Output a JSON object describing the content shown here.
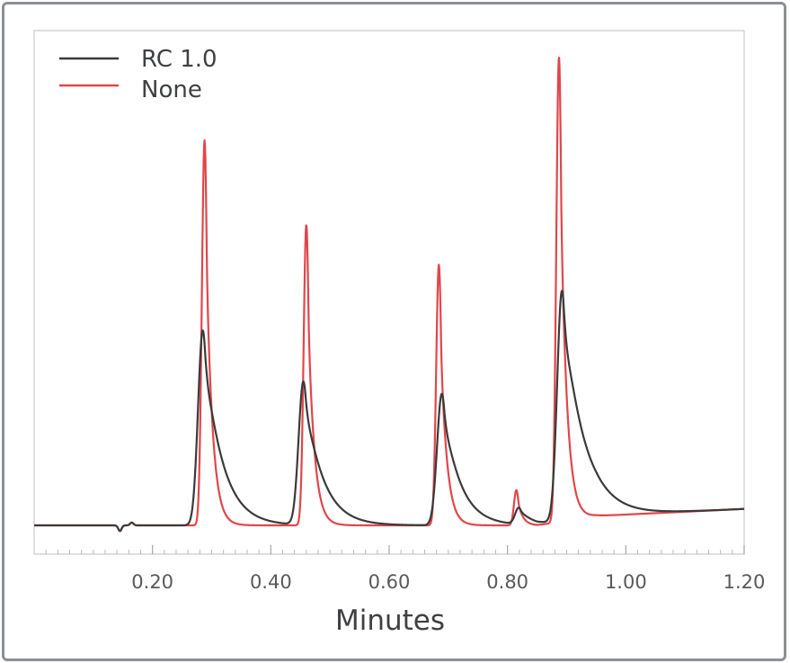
{
  "chart_data": {
    "type": "line",
    "title": "",
    "xlabel": "Minutes",
    "ylabel": "",
    "xlim": [
      0.0,
      1.2
    ],
    "ylim": [
      -0.06,
      1.02
    ],
    "x_ticks": [
      0.2,
      0.4,
      0.6,
      0.8,
      1.0,
      1.2
    ],
    "x_tick_labels": [
      "0.20",
      "0.40",
      "0.60",
      "0.80",
      "1.00",
      "1.20"
    ],
    "grid": false,
    "legend_position": "top-left",
    "series": [
      {
        "name": "RC 1.0",
        "color": "#3a3a3a",
        "baseline": [
          [
            0.0,
            0.0
          ],
          [
            0.85,
            0.0
          ],
          [
            0.95,
            0.02
          ],
          [
            1.2,
            0.035
          ]
        ],
        "peaks": [
          {
            "x": 0.285,
            "height": 0.415,
            "sigma": 0.008,
            "tail": 0.03
          },
          {
            "x": 0.455,
            "height": 0.305,
            "sigma": 0.008,
            "tail": 0.03
          },
          {
            "x": 0.689,
            "height": 0.28,
            "sigma": 0.008,
            "tail": 0.028
          },
          {
            "x": 0.819,
            "height": 0.035,
            "sigma": 0.006,
            "tail": 0.02
          },
          {
            "x": 0.892,
            "height": 0.49,
            "sigma": 0.008,
            "tail": 0.035
          }
        ]
      },
      {
        "name": "None",
        "color": "#e0464b",
        "baseline": [
          [
            0.0,
            0.0
          ],
          [
            0.85,
            0.0
          ],
          [
            0.95,
            0.02
          ],
          [
            1.2,
            0.035
          ]
        ],
        "peaks": [
          {
            "x": 0.288,
            "height": 0.82,
            "sigma": 0.0045,
            "tail": 0.01
          },
          {
            "x": 0.46,
            "height": 0.64,
            "sigma": 0.0045,
            "tail": 0.01
          },
          {
            "x": 0.684,
            "height": 0.555,
            "sigma": 0.0045,
            "tail": 0.01
          },
          {
            "x": 0.815,
            "height": 0.075,
            "sigma": 0.004,
            "tail": 0.008
          },
          {
            "x": 0.887,
            "height": 0.99,
            "sigma": 0.0045,
            "tail": 0.01
          }
        ]
      }
    ]
  }
}
